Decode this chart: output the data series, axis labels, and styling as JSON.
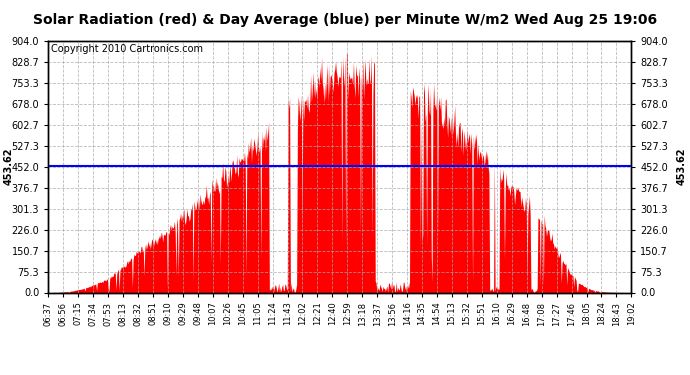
{
  "title": "Solar Radiation (red) & Day Average (blue) per Minute W/m2 Wed Aug 25 19:06",
  "copyright": "Copyright 2010 Cartronics.com",
  "average_value": 453.62,
  "y_max": 904.0,
  "y_min": 0.0,
  "y_ticks": [
    0.0,
    75.3,
    150.7,
    226.0,
    301.3,
    376.7,
    452.0,
    527.3,
    602.7,
    678.0,
    753.3,
    828.7,
    904.0
  ],
  "x_labels": [
    "06:37",
    "06:56",
    "07:15",
    "07:34",
    "07:53",
    "08:13",
    "08:32",
    "08:51",
    "09:10",
    "09:29",
    "09:48",
    "10:07",
    "10:26",
    "10:45",
    "11:05",
    "11:24",
    "11:43",
    "12:02",
    "12:21",
    "12:40",
    "12:59",
    "13:18",
    "13:37",
    "13:56",
    "14:16",
    "14:35",
    "14:54",
    "15:13",
    "15:32",
    "15:51",
    "16:10",
    "16:29",
    "16:48",
    "17:08",
    "17:27",
    "17:46",
    "18:05",
    "18:24",
    "18:43",
    "19:02"
  ],
  "background_color": "#ffffff",
  "fill_color": "#ff0000",
  "line_color": "#0000ff",
  "grid_color": "#aaaaaa",
  "title_fontsize": 10,
  "copyright_fontsize": 7,
  "avg_label_fontsize": 7
}
